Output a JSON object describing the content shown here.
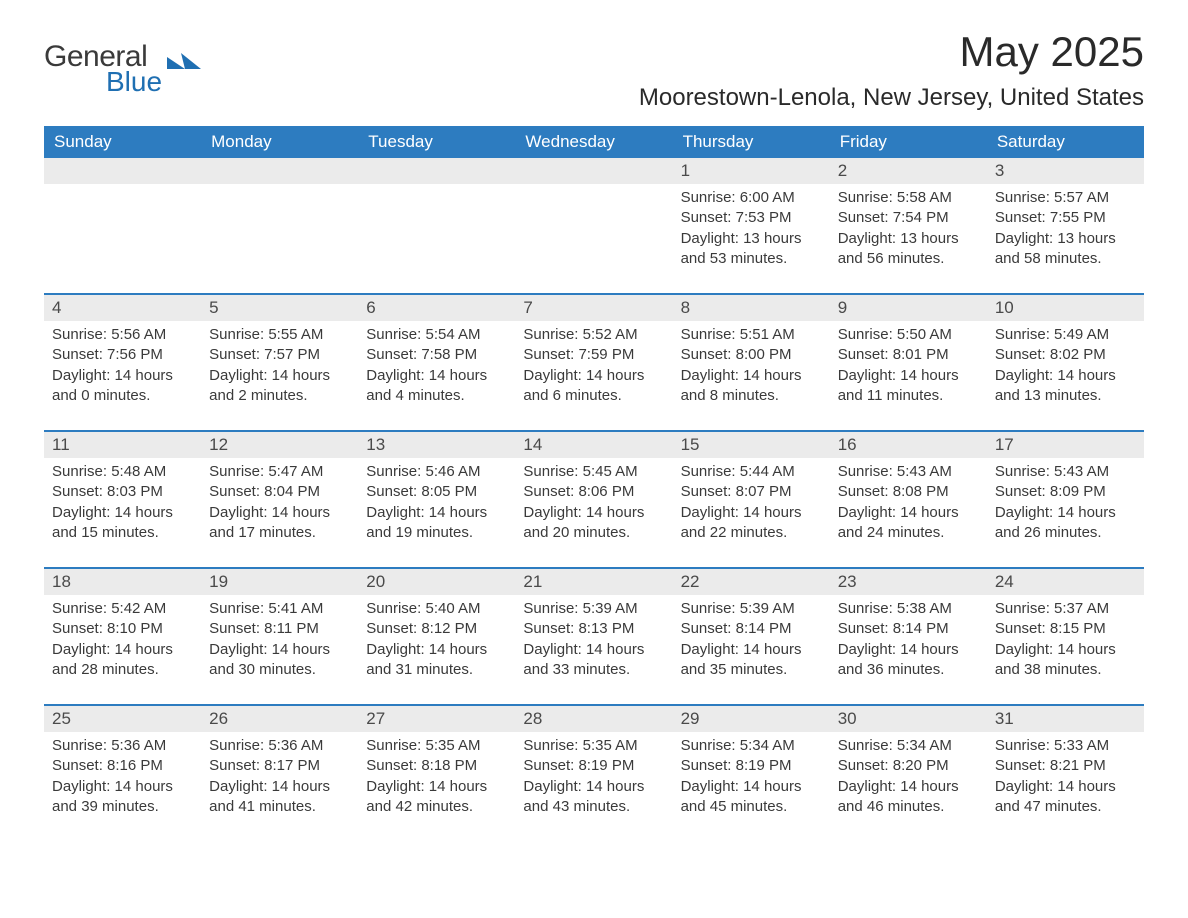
{
  "logo": {
    "general": "General",
    "blue": "Blue",
    "brand_color": "#1f6fb2"
  },
  "title": {
    "month": "May 2025",
    "location": "Moorestown-Lenola, New Jersey, United States"
  },
  "colors": {
    "header_bg": "#2d7cc0",
    "header_text": "#ffffff",
    "daynum_bg": "#ebebeb",
    "daynum_text": "#4a4a4a",
    "body_text": "#3a3a3a",
    "row_border": "#2d7cc0",
    "page_bg": "#ffffff"
  },
  "typography": {
    "month_title_fontsize": 42,
    "location_fontsize": 24,
    "header_fontsize": 17,
    "daynum_fontsize": 17,
    "body_fontsize": 15
  },
  "layout": {
    "columns": 7,
    "rows": 5,
    "blank_leading_cells": 4
  },
  "day_headers": [
    "Sunday",
    "Monday",
    "Tuesday",
    "Wednesday",
    "Thursday",
    "Friday",
    "Saturday"
  ],
  "weeks": [
    [
      null,
      null,
      null,
      null,
      {
        "num": "1",
        "sunrise": "Sunrise: 6:00 AM",
        "sunset": "Sunset: 7:53 PM",
        "daylight": "Daylight: 13 hours and 53 minutes."
      },
      {
        "num": "2",
        "sunrise": "Sunrise: 5:58 AM",
        "sunset": "Sunset: 7:54 PM",
        "daylight": "Daylight: 13 hours and 56 minutes."
      },
      {
        "num": "3",
        "sunrise": "Sunrise: 5:57 AM",
        "sunset": "Sunset: 7:55 PM",
        "daylight": "Daylight: 13 hours and 58 minutes."
      }
    ],
    [
      {
        "num": "4",
        "sunrise": "Sunrise: 5:56 AM",
        "sunset": "Sunset: 7:56 PM",
        "daylight": "Daylight: 14 hours and 0 minutes."
      },
      {
        "num": "5",
        "sunrise": "Sunrise: 5:55 AM",
        "sunset": "Sunset: 7:57 PM",
        "daylight": "Daylight: 14 hours and 2 minutes."
      },
      {
        "num": "6",
        "sunrise": "Sunrise: 5:54 AM",
        "sunset": "Sunset: 7:58 PM",
        "daylight": "Daylight: 14 hours and 4 minutes."
      },
      {
        "num": "7",
        "sunrise": "Sunrise: 5:52 AM",
        "sunset": "Sunset: 7:59 PM",
        "daylight": "Daylight: 14 hours and 6 minutes."
      },
      {
        "num": "8",
        "sunrise": "Sunrise: 5:51 AM",
        "sunset": "Sunset: 8:00 PM",
        "daylight": "Daylight: 14 hours and 8 minutes."
      },
      {
        "num": "9",
        "sunrise": "Sunrise: 5:50 AM",
        "sunset": "Sunset: 8:01 PM",
        "daylight": "Daylight: 14 hours and 11 minutes."
      },
      {
        "num": "10",
        "sunrise": "Sunrise: 5:49 AM",
        "sunset": "Sunset: 8:02 PM",
        "daylight": "Daylight: 14 hours and 13 minutes."
      }
    ],
    [
      {
        "num": "11",
        "sunrise": "Sunrise: 5:48 AM",
        "sunset": "Sunset: 8:03 PM",
        "daylight": "Daylight: 14 hours and 15 minutes."
      },
      {
        "num": "12",
        "sunrise": "Sunrise: 5:47 AM",
        "sunset": "Sunset: 8:04 PM",
        "daylight": "Daylight: 14 hours and 17 minutes."
      },
      {
        "num": "13",
        "sunrise": "Sunrise: 5:46 AM",
        "sunset": "Sunset: 8:05 PM",
        "daylight": "Daylight: 14 hours and 19 minutes."
      },
      {
        "num": "14",
        "sunrise": "Sunrise: 5:45 AM",
        "sunset": "Sunset: 8:06 PM",
        "daylight": "Daylight: 14 hours and 20 minutes."
      },
      {
        "num": "15",
        "sunrise": "Sunrise: 5:44 AM",
        "sunset": "Sunset: 8:07 PM",
        "daylight": "Daylight: 14 hours and 22 minutes."
      },
      {
        "num": "16",
        "sunrise": "Sunrise: 5:43 AM",
        "sunset": "Sunset: 8:08 PM",
        "daylight": "Daylight: 14 hours and 24 minutes."
      },
      {
        "num": "17",
        "sunrise": "Sunrise: 5:43 AM",
        "sunset": "Sunset: 8:09 PM",
        "daylight": "Daylight: 14 hours and 26 minutes."
      }
    ],
    [
      {
        "num": "18",
        "sunrise": "Sunrise: 5:42 AM",
        "sunset": "Sunset: 8:10 PM",
        "daylight": "Daylight: 14 hours and 28 minutes."
      },
      {
        "num": "19",
        "sunrise": "Sunrise: 5:41 AM",
        "sunset": "Sunset: 8:11 PM",
        "daylight": "Daylight: 14 hours and 30 minutes."
      },
      {
        "num": "20",
        "sunrise": "Sunrise: 5:40 AM",
        "sunset": "Sunset: 8:12 PM",
        "daylight": "Daylight: 14 hours and 31 minutes."
      },
      {
        "num": "21",
        "sunrise": "Sunrise: 5:39 AM",
        "sunset": "Sunset: 8:13 PM",
        "daylight": "Daylight: 14 hours and 33 minutes."
      },
      {
        "num": "22",
        "sunrise": "Sunrise: 5:39 AM",
        "sunset": "Sunset: 8:14 PM",
        "daylight": "Daylight: 14 hours and 35 minutes."
      },
      {
        "num": "23",
        "sunrise": "Sunrise: 5:38 AM",
        "sunset": "Sunset: 8:14 PM",
        "daylight": "Daylight: 14 hours and 36 minutes."
      },
      {
        "num": "24",
        "sunrise": "Sunrise: 5:37 AM",
        "sunset": "Sunset: 8:15 PM",
        "daylight": "Daylight: 14 hours and 38 minutes."
      }
    ],
    [
      {
        "num": "25",
        "sunrise": "Sunrise: 5:36 AM",
        "sunset": "Sunset: 8:16 PM",
        "daylight": "Daylight: 14 hours and 39 minutes."
      },
      {
        "num": "26",
        "sunrise": "Sunrise: 5:36 AM",
        "sunset": "Sunset: 8:17 PM",
        "daylight": "Daylight: 14 hours and 41 minutes."
      },
      {
        "num": "27",
        "sunrise": "Sunrise: 5:35 AM",
        "sunset": "Sunset: 8:18 PM",
        "daylight": "Daylight: 14 hours and 42 minutes."
      },
      {
        "num": "28",
        "sunrise": "Sunrise: 5:35 AM",
        "sunset": "Sunset: 8:19 PM",
        "daylight": "Daylight: 14 hours and 43 minutes."
      },
      {
        "num": "29",
        "sunrise": "Sunrise: 5:34 AM",
        "sunset": "Sunset: 8:19 PM",
        "daylight": "Daylight: 14 hours and 45 minutes."
      },
      {
        "num": "30",
        "sunrise": "Sunrise: 5:34 AM",
        "sunset": "Sunset: 8:20 PM",
        "daylight": "Daylight: 14 hours and 46 minutes."
      },
      {
        "num": "31",
        "sunrise": "Sunrise: 5:33 AM",
        "sunset": "Sunset: 8:21 PM",
        "daylight": "Daylight: 14 hours and 47 minutes."
      }
    ]
  ]
}
